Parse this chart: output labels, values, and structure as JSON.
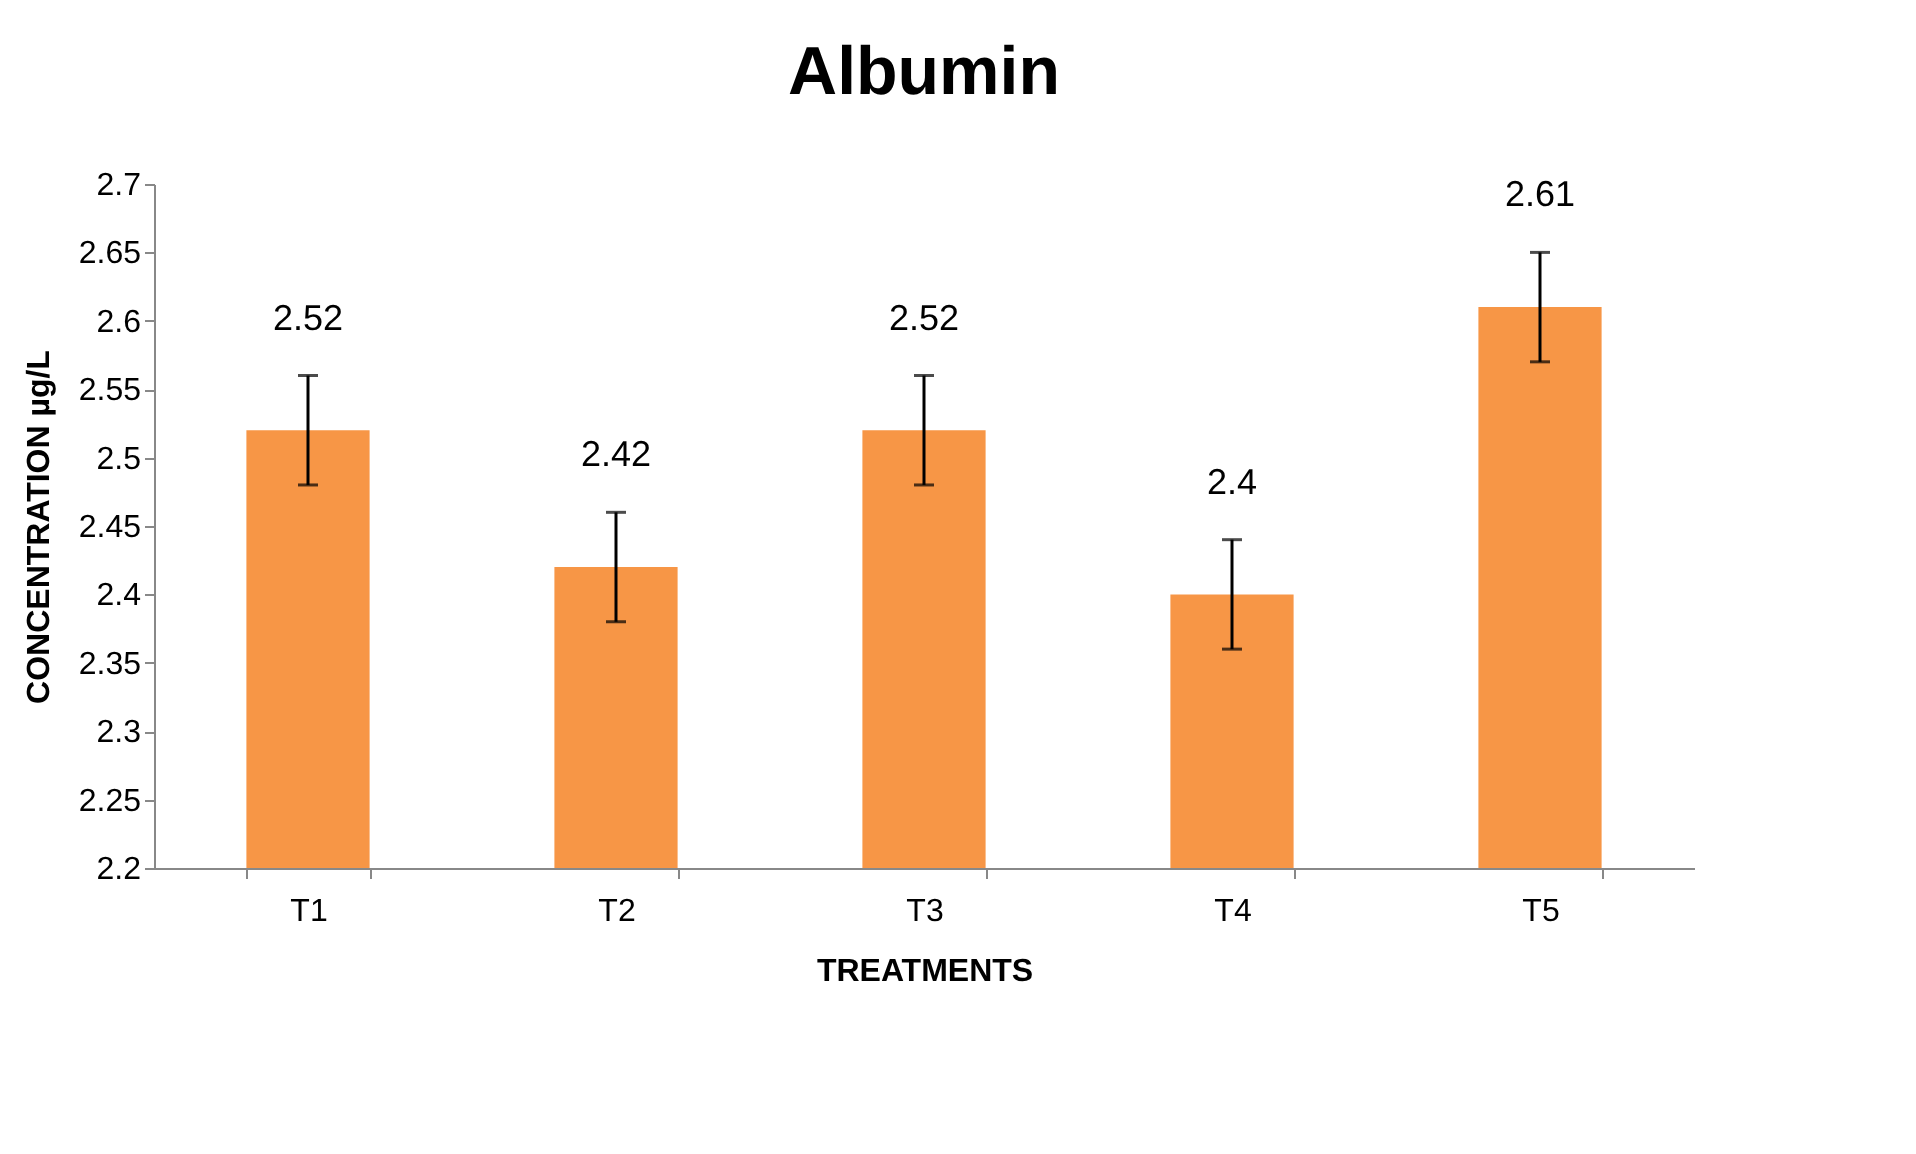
{
  "chart_data": {
    "type": "bar",
    "title": "Albumin",
    "xlabel": "TREATMENTS",
    "ylabel": "CONCENTRATION µg/L",
    "categories": [
      "T1",
      "T2",
      "T3",
      "T4",
      "T5"
    ],
    "values": [
      2.52,
      2.42,
      2.52,
      2.4,
      2.61
    ],
    "errors": [
      0.04,
      0.04,
      0.04,
      0.04,
      0.04
    ],
    "color": "#f79646",
    "data_labels": true,
    "ylim": [
      2.2,
      2.7
    ],
    "yticks": [
      2.2,
      2.25,
      2.3,
      2.35,
      2.4,
      2.45,
      2.5,
      2.55,
      2.6,
      2.65,
      2.7
    ],
    "grid": false
  }
}
